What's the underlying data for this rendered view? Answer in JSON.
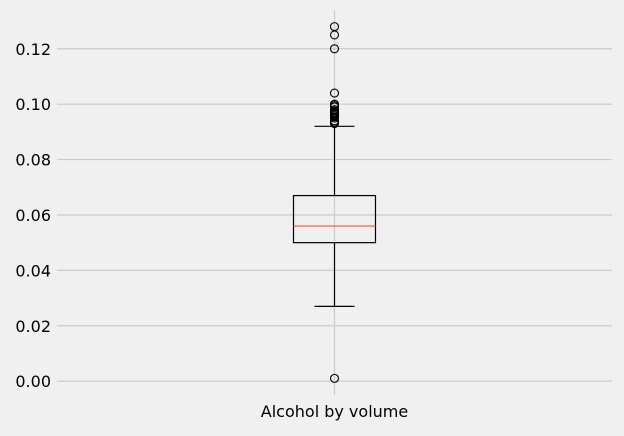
{
  "chart_data": {
    "type": "boxplot",
    "title": "",
    "xlabel": "",
    "ylabel": "",
    "ylim": [
      -0.005,
      0.134
    ],
    "yticks": [
      0.0,
      0.02,
      0.04,
      0.06,
      0.08,
      0.1,
      0.12
    ],
    "ytick_labels": [
      "0.00",
      "0.02",
      "0.04",
      "0.06",
      "0.08",
      "0.10",
      "0.12"
    ],
    "categories": [
      "Alcohol by volume"
    ],
    "grid": true,
    "boxes": [
      {
        "category": "Alcohol by volume",
        "whisker_low": 0.027,
        "q1": 0.05,
        "median": 0.056,
        "q3": 0.067,
        "whisker_high": 0.092,
        "outliers": [
          0.001,
          0.093,
          0.0935,
          0.094,
          0.095,
          0.0955,
          0.096,
          0.0965,
          0.097,
          0.0975,
          0.098,
          0.099,
          0.0995,
          0.1,
          0.104,
          0.12,
          0.125,
          0.128
        ]
      }
    ],
    "colors": {
      "background": "#f0f0f0",
      "grid": "#cbcbcb",
      "box": "#000000",
      "median": "#fc4f30",
      "text": "#000000"
    }
  }
}
